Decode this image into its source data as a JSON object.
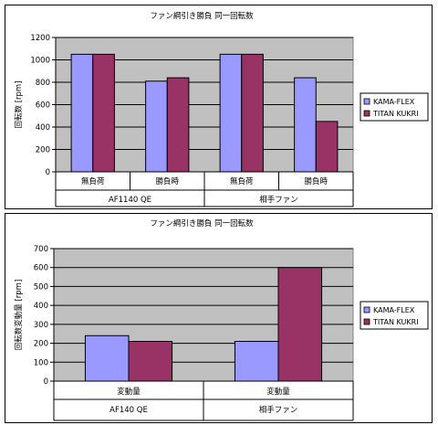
{
  "colors": {
    "series1": "#9999ff",
    "series2": "#993366",
    "plot_bg": "#c0c0c0",
    "grid": "#000000"
  },
  "chart_data": [
    {
      "type": "bar",
      "title": "ファン綱引き勝負  同一回転数",
      "ylabel": "回転数  [rpm]",
      "xlabel": "",
      "ylim": [
        0,
        1200
      ],
      "yticks": [
        "0",
        "200",
        "400",
        "600",
        "800",
        "1000",
        "1200"
      ],
      "categories": [
        "無負荷",
        "勝負時",
        "無負荷",
        "勝負時"
      ],
      "groups": [
        "AF1140  QE",
        "相手ファン"
      ],
      "series": [
        {
          "name": "KAMA-FLEX",
          "values": [
            1050,
            810,
            1050,
            840
          ]
        },
        {
          "name": "TITAN KUKRI",
          "values": [
            1050,
            840,
            1050,
            450
          ]
        }
      ],
      "grid": true,
      "legend": "right"
    },
    {
      "type": "bar",
      "title": "ファン綱引き勝負  同一回転数",
      "ylabel": "回転数変動量  [rpm]",
      "xlabel": "",
      "ylim": [
        0,
        700
      ],
      "yticks": [
        "0",
        "100",
        "200",
        "300",
        "400",
        "500",
        "600",
        "700"
      ],
      "categories": [
        "変動量",
        "変動量"
      ],
      "groups": [
        "AF140  QE",
        "相手ファン"
      ],
      "series": [
        {
          "name": "KAMA-FLEX",
          "values": [
            240,
            210
          ]
        },
        {
          "name": "TITAN KUKRI",
          "values": [
            210,
            600
          ]
        }
      ],
      "grid": true,
      "legend": "right"
    }
  ]
}
